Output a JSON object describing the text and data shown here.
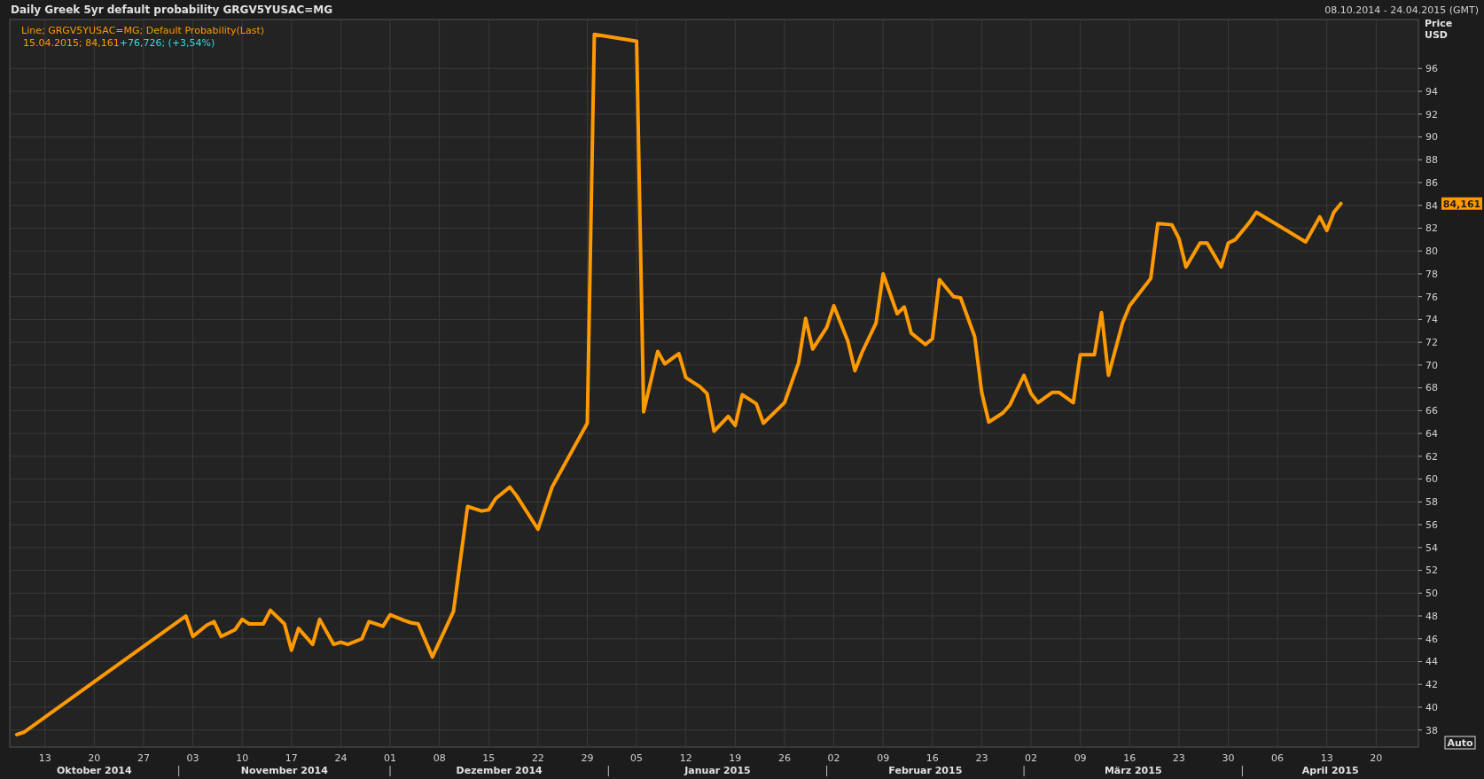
{
  "chart_data": {
    "type": "line",
    "title": "Daily Greek 5yr default probability GRGV5YUSAC=MG",
    "ylabel": "Price USD",
    "x": [
      "2014-10-09",
      "2014-10-10",
      "2014-11-02",
      "2014-11-03",
      "2014-11-05",
      "2014-11-06",
      "2014-11-07",
      "2014-11-09",
      "2014-11-10",
      "2014-11-11",
      "2014-11-13",
      "2014-11-14",
      "2014-11-16",
      "2014-11-17",
      "2014-11-18",
      "2014-11-20",
      "2014-11-21",
      "2014-11-23",
      "2014-11-24",
      "2014-11-25",
      "2014-11-27",
      "2014-11-28",
      "2014-11-30",
      "2014-12-01",
      "2014-12-03",
      "2014-12-04",
      "2014-12-05",
      "2014-12-07",
      "2014-12-10",
      "2014-12-12",
      "2014-12-14",
      "2014-12-15",
      "2014-12-16",
      "2014-12-18",
      "2014-12-19",
      "2014-12-22",
      "2014-12-24",
      "2014-12-29",
      "2014-12-30",
      "2015-01-05",
      "2015-01-06",
      "2015-01-08",
      "2015-01-09",
      "2015-01-11",
      "2015-01-12",
      "2015-01-14",
      "2015-01-15",
      "2015-01-16",
      "2015-01-18",
      "2015-01-19",
      "2015-01-20",
      "2015-01-22",
      "2015-01-23",
      "2015-01-26",
      "2015-01-28",
      "2015-01-29",
      "2015-01-30",
      "2015-02-01",
      "2015-02-02",
      "2015-02-04",
      "2015-02-05",
      "2015-02-06",
      "2015-02-08",
      "2015-02-09",
      "2015-02-11",
      "2015-02-12",
      "2015-02-13",
      "2015-02-15",
      "2015-02-16",
      "2015-02-17",
      "2015-02-19",
      "2015-02-20",
      "2015-02-22",
      "2015-02-23",
      "2015-02-24",
      "2015-02-26",
      "2015-02-27",
      "2015-03-01",
      "2015-03-02",
      "2015-03-03",
      "2015-03-05",
      "2015-03-06",
      "2015-03-08",
      "2015-03-09",
      "2015-03-11",
      "2015-03-12",
      "2015-03-13",
      "2015-03-15",
      "2015-03-16",
      "2015-03-17",
      "2015-03-19",
      "2015-03-20",
      "2015-03-22",
      "2015-03-23",
      "2015-03-24",
      "2015-03-26",
      "2015-03-27",
      "2015-03-29",
      "2015-03-30",
      "2015-03-31",
      "2015-04-02",
      "2015-04-03",
      "2015-04-10",
      "2015-04-12",
      "2015-04-13",
      "2015-04-14",
      "2015-04-15"
    ],
    "series": [
      {
        "color": "#ff9900",
        "values": [
          37.6,
          37.8,
          48.0,
          46.2,
          47.2,
          47.5,
          46.2,
          46.8,
          47.7,
          47.3,
          47.3,
          48.5,
          47.3,
          45.0,
          46.9,
          45.5,
          47.7,
          45.5,
          45.7,
          45.5,
          46.0,
          47.5,
          47.1,
          48.1,
          47.6,
          47.4,
          47.3,
          44.4,
          48.4,
          57.6,
          57.2,
          57.3,
          58.3,
          59.3,
          58.5,
          55.6,
          59.3,
          64.9,
          99.0,
          98.4,
          65.9,
          71.2,
          70.1,
          71.0,
          68.9,
          68.1,
          67.5,
          64.2,
          65.5,
          64.7,
          67.4,
          66.6,
          64.9,
          66.7,
          70.2,
          74.1,
          71.4,
          73.3,
          75.2,
          72.1,
          69.5,
          71.1,
          73.7,
          78.0,
          74.5,
          75.1,
          72.8,
          71.8,
          72.3,
          77.5,
          76.0,
          75.9,
          72.5,
          67.6,
          65.0,
          65.8,
          66.5,
          69.1,
          67.5,
          66.7,
          67.6,
          67.6,
          66.7,
          70.9,
          70.9,
          74.6,
          69.1,
          73.7,
          75.2,
          76.0,
          77.6,
          82.4,
          82.3,
          81.1,
          78.6,
          80.7,
          80.7,
          78.6,
          80.7,
          81.0,
          82.5,
          83.4,
          80.8,
          83.0,
          81.8,
          83.4,
          84.161
        ]
      }
    ],
    "xlim": [
      "2014-10-08",
      "2015-04-26"
    ],
    "xticks": [
      {
        "value": "2014-10-13",
        "label": "13"
      },
      {
        "value": "2014-10-20",
        "label": "20"
      },
      {
        "value": "2014-10-27",
        "label": "27"
      },
      {
        "value": "2014-11-03",
        "label": "03"
      },
      {
        "value": "2014-11-10",
        "label": "10"
      },
      {
        "value": "2014-11-17",
        "label": "17"
      },
      {
        "value": "2014-11-24",
        "label": "24"
      },
      {
        "value": "2014-12-01",
        "label": "01"
      },
      {
        "value": "2014-12-08",
        "label": "08"
      },
      {
        "value": "2014-12-15",
        "label": "15"
      },
      {
        "value": "2014-12-22",
        "label": "22"
      },
      {
        "value": "2014-12-29",
        "label": "29"
      },
      {
        "value": "2015-01-05",
        "label": "05"
      },
      {
        "value": "2015-01-12",
        "label": "12"
      },
      {
        "value": "2015-01-19",
        "label": "19"
      },
      {
        "value": "2015-01-26",
        "label": "26"
      },
      {
        "value": "2015-02-02",
        "label": "02"
      },
      {
        "value": "2015-02-09",
        "label": "09"
      },
      {
        "value": "2015-02-16",
        "label": "16"
      },
      {
        "value": "2015-02-23",
        "label": "23"
      },
      {
        "value": "2015-03-02",
        "label": "02"
      },
      {
        "value": "2015-03-09",
        "label": "09"
      },
      {
        "value": "2015-03-16",
        "label": "16"
      },
      {
        "value": "2015-03-23",
        "label": "23"
      },
      {
        "value": "2015-03-30",
        "label": "30"
      },
      {
        "value": "2015-04-06",
        "label": "06"
      },
      {
        "value": "2015-04-13",
        "label": "13"
      },
      {
        "value": "2015-04-20",
        "label": "20"
      }
    ],
    "ylim": [
      36.5,
      100.3
    ],
    "yticks": [
      38,
      40,
      42,
      44,
      46,
      48,
      50,
      52,
      54,
      56,
      58,
      60,
      62,
      64,
      66,
      68,
      70,
      72,
      74,
      76,
      78,
      80,
      82,
      84,
      86,
      88,
      90,
      92,
      94,
      96
    ],
    "grid": true,
    "line_style": "solid",
    "marker": "none",
    "annotations": [
      "08.10.2014 - 24.04.2015 (GMT)",
      "Line; GRGV5YUSAC=MG; Default Probability(Last)",
      "15.04.2015; 84,161",
      "+76,726; (+3,54%)",
      "84,161",
      "Auto",
      "Oktober 2014",
      "November 2014",
      "Dezember 2014",
      "Januar 2015",
      "Februar 2015",
      "März 2015",
      "April 2015"
    ]
  }
}
